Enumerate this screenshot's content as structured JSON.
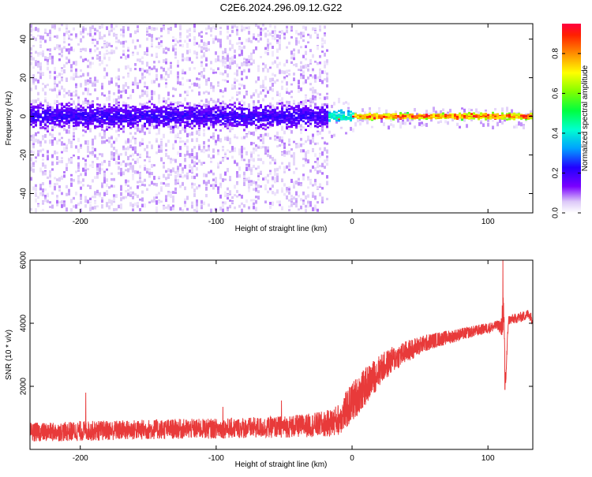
{
  "figure": {
    "title": "C2E6.2024.296.09.12.G22"
  },
  "colors": {
    "snr_line": "#e83a3a",
    "spectrogram_colormap": [
      "#ffffff",
      "#d9c9f5",
      "#a36df0",
      "#6a00ff",
      "#1a1aff",
      "#00c8ff",
      "#00ff80",
      "#80ff00",
      "#ffff00",
      "#ff8000",
      "#ff0000"
    ]
  },
  "chart_data": [
    {
      "type": "heatmap",
      "name_in_image": "spectrogram",
      "xlabel": "Height of straight line (km)",
      "ylabel": "Frequency (Hz)",
      "xlim": [
        -237,
        133
      ],
      "ylim": [
        -50,
        48
      ],
      "x_ticks": [
        -200,
        -100,
        0,
        100
      ],
      "x_tick_labels": [
        "-200",
        "-100",
        "0",
        "100"
      ],
      "y_ticks": [
        40,
        20,
        0,
        -20,
        -40
      ],
      "y_tick_labels": [
        "40",
        "20",
        "0",
        "-20",
        "-40"
      ],
      "colorbar": {
        "label": "Normalized spectral amplitude",
        "range": [
          0,
          0.95
        ],
        "ticks": [
          0.0,
          0.2,
          0.4,
          0.6,
          0.8
        ],
        "tick_labels": [
          "0.0",
          "0.2",
          "0.4",
          "0.6",
          "0.8"
        ]
      },
      "description_of_structure": [
        {
          "x_range": [
            -237,
            -18
          ],
          "frequency_center": 0,
          "core_halfwidth_hz": 10,
          "scatter_halfwidth_hz": 48,
          "amplitude_range": [
            0.05,
            0.25
          ]
        },
        {
          "x_range": [
            -18,
            0
          ],
          "frequency_center": 0,
          "core_halfwidth_hz": 5,
          "scatter_halfwidth_hz": 10,
          "amplitude_range": [
            0.2,
            0.5
          ]
        },
        {
          "x_range": [
            0,
            133
          ],
          "frequency_center": 0,
          "core_halfwidth_hz": 2.5,
          "scatter_halfwidth_hz": 5,
          "amplitude_range": [
            0.4,
            0.95
          ]
        }
      ]
    },
    {
      "type": "line",
      "name_in_image": "snr",
      "xlabel": "Height of straight line (km)",
      "ylabel": "SNR (10 * v/v)",
      "xlim": [
        -237,
        133
      ],
      "ylim": [
        0,
        6000
      ],
      "x_ticks": [
        -200,
        -100,
        0,
        100
      ],
      "x_tick_labels": [
        "-200",
        "-100",
        "0",
        "100"
      ],
      "y_ticks": [
        6000,
        4000,
        2000
      ],
      "y_tick_labels": [
        "6000",
        "4000",
        "2000"
      ],
      "series": [
        {
          "x": [
            -237,
            -220,
            -200,
            -180,
            -160,
            -140,
            -120,
            -100,
            -80,
            -60,
            -40,
            -30,
            -20,
            -15,
            -10,
            -5,
            0,
            10,
            20,
            30,
            40,
            50,
            60,
            70,
            80,
            90,
            100,
            105,
            108,
            110,
            111,
            112,
            113,
            115,
            120,
            125,
            130,
            133
          ],
          "y": [
            550,
            550,
            580,
            600,
            620,
            640,
            650,
            660,
            680,
            700,
            740,
            770,
            800,
            850,
            950,
            1200,
            1500,
            2000,
            2500,
            2850,
            3100,
            3300,
            3450,
            3550,
            3650,
            3750,
            3850,
            3900,
            3950,
            3800,
            4500,
            3600,
            2100,
            4100,
            4150,
            4200,
            4300,
            4100
          ],
          "noise_amplitude": [
            300,
            300,
            320,
            320,
            320,
            320,
            320,
            320,
            330,
            340,
            360,
            380,
            420,
            450,
            500,
            600,
            650,
            600,
            500,
            420,
            350,
            300,
            250,
            220,
            200,
            180,
            170,
            170,
            160,
            400,
            800,
            500,
            300,
            160,
            160,
            160,
            160,
            160
          ],
          "spikes": [
            {
              "x": -196,
              "y": 1800
            },
            {
              "x": -95,
              "y": 1350
            },
            {
              "x": -52,
              "y": 1550
            },
            {
              "x": 111,
              "y": 6000
            },
            {
              "x": 112.5,
              "y": 1900
            }
          ]
        }
      ]
    }
  ]
}
